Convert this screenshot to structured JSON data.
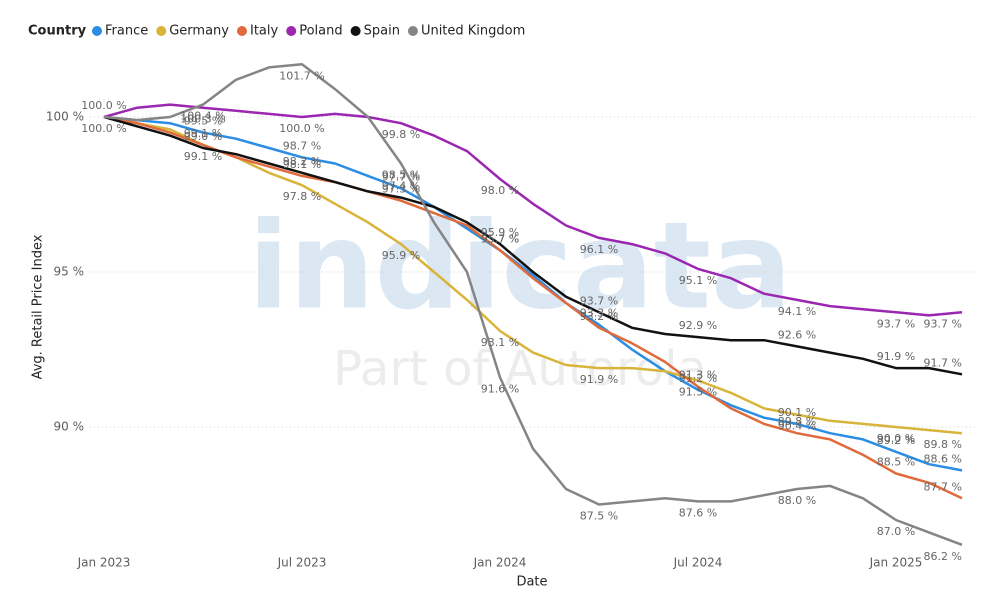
{
  "chart_data": {
    "type": "line",
    "legend_title": "Country",
    "x_label": "Date",
    "y_label": "Avg. Retail Price Index",
    "watermark": [
      "indicata",
      "Part of Autorola"
    ],
    "x": [
      "2023-01",
      "2023-02",
      "2023-03",
      "2023-04",
      "2023-05",
      "2023-06",
      "2023-07",
      "2023-08",
      "2023-09",
      "2023-10",
      "2023-11",
      "2023-12",
      "2024-01",
      "2024-02",
      "2024-03",
      "2024-04",
      "2024-05",
      "2024-06",
      "2024-07",
      "2024-08",
      "2024-09",
      "2024-10",
      "2024-11",
      "2024-12",
      "2025-01",
      "2025-02",
      "2025-03"
    ],
    "xticks": [
      {
        "value": "2023-01",
        "label": "Jan 2023"
      },
      {
        "value": "2023-07",
        "label": "Jul 2023"
      },
      {
        "value": "2024-01",
        "label": "Jan 2024"
      },
      {
        "value": "2024-07",
        "label": "Jul 2024"
      },
      {
        "value": "2025-01",
        "label": "Jan 2025"
      }
    ],
    "ylim": [
      85.2,
      102.5
    ],
    "yticks": [
      {
        "value": 90,
        "label": "90 %"
      },
      {
        "value": 95,
        "label": "95 %"
      },
      {
        "value": 100,
        "label": "100 %"
      }
    ],
    "grid": true,
    "series": [
      {
        "name": "France",
        "color": "#2b8de3",
        "values": [
          100.0,
          99.9,
          99.8,
          99.5,
          99.3,
          99.0,
          98.7,
          98.5,
          98.1,
          97.7,
          97.1,
          96.4,
          95.7,
          94.9,
          94.0,
          93.3,
          92.5,
          91.8,
          91.2,
          90.7,
          90.3,
          90.1,
          89.8,
          89.6,
          89.2,
          88.8,
          88.6
        ],
        "value_labels": [
          "100.0 %",
          null,
          null,
          "99.5 %",
          null,
          null,
          "98.7 %",
          null,
          null,
          "97.7 %",
          null,
          null,
          "95.7 %",
          null,
          null,
          "93.3 %",
          null,
          null,
          "91.2 %",
          null,
          null,
          "90.1 %",
          null,
          null,
          "89.2 %",
          null,
          "88.6 %"
        ]
      },
      {
        "name": "Germany",
        "color": "#d9b43a",
        "values": [
          100.0,
          99.8,
          99.6,
          99.1,
          98.7,
          98.2,
          97.8,
          97.2,
          96.6,
          95.9,
          95.0,
          94.1,
          93.1,
          92.4,
          92.0,
          91.9,
          91.9,
          91.8,
          91.5,
          91.1,
          90.6,
          90.4,
          90.2,
          90.1,
          90.0,
          89.9,
          89.8
        ],
        "value_labels": [
          null,
          null,
          null,
          "99.1 %",
          null,
          null,
          "97.8 %",
          null,
          null,
          "95.9 %",
          null,
          null,
          "93.1 %",
          null,
          null,
          "91.9 %",
          null,
          null,
          "91.5 %",
          null,
          null,
          "90.4 %",
          null,
          null,
          "90.0 %",
          null,
          "89.8 %"
        ]
      },
      {
        "name": "Italy",
        "color": "#e06a3b",
        "values": [
          100.0,
          99.8,
          99.5,
          99.1,
          98.7,
          98.4,
          98.1,
          97.9,
          97.6,
          97.3,
          96.9,
          96.5,
          95.7,
          94.8,
          94.0,
          93.2,
          92.7,
          92.1,
          91.3,
          90.6,
          90.1,
          89.8,
          89.6,
          89.1,
          88.5,
          88.2,
          87.7
        ],
        "value_labels": [
          null,
          null,
          null,
          "99.1 %",
          null,
          null,
          "98.1 %",
          null,
          null,
          "97.3 %",
          null,
          null,
          "95.7 %",
          null,
          null,
          "93.2 %",
          null,
          null,
          "91.3 %",
          null,
          null,
          "89.8 %",
          null,
          null,
          "88.5 %",
          null,
          "87.7 %"
        ]
      },
      {
        "name": "Poland",
        "color": "#9b27b0",
        "values": [
          100.0,
          100.3,
          100.4,
          100.3,
          100.2,
          100.1,
          100.0,
          100.1,
          100.0,
          99.8,
          99.4,
          98.9,
          98.0,
          97.2,
          96.5,
          96.1,
          95.9,
          95.6,
          95.1,
          94.8,
          94.3,
          94.1,
          93.9,
          93.8,
          93.7,
          93.6,
          93.7
        ],
        "value_labels": [
          null,
          null,
          null,
          "100.3 %",
          null,
          null,
          "100.0 %",
          null,
          null,
          "99.8 %",
          null,
          null,
          "98.0 %",
          null,
          null,
          "96.1 %",
          null,
          null,
          "95.1 %",
          null,
          null,
          "94.1 %",
          null,
          null,
          "93.7 %",
          null,
          "93.7 %"
        ]
      },
      {
        "name": "Spain",
        "color": "#111111",
        "values": [
          100.0,
          99.7,
          99.4,
          99.0,
          98.8,
          98.5,
          98.2,
          97.9,
          97.6,
          97.4,
          97.1,
          96.6,
          95.9,
          95.0,
          94.2,
          93.7,
          93.2,
          93.0,
          92.9,
          92.8,
          92.8,
          92.6,
          92.4,
          92.2,
          91.9,
          91.9,
          91.7
        ],
        "value_labels": [
          null,
          null,
          null,
          "99.0 %",
          null,
          null,
          "98.2 %",
          null,
          null,
          "97.4 %",
          null,
          null,
          "95.9 %",
          null,
          null,
          "93.7 %",
          null,
          null,
          "92.9 %",
          null,
          null,
          "92.6 %",
          null,
          null,
          "91.9 %",
          null,
          "91.7 %"
        ]
      },
      {
        "name": "United Kingdom",
        "color": "#858585",
        "values": [
          100.0,
          99.9,
          100.0,
          100.4,
          101.2,
          101.6,
          101.7,
          100.9,
          100.0,
          98.5,
          96.6,
          95.0,
          91.6,
          89.3,
          88.0,
          87.5,
          87.6,
          87.7,
          87.6,
          87.6,
          87.8,
          88.0,
          88.1,
          87.7,
          87.0,
          86.6,
          86.2
        ],
        "value_labels": [
          "100.0 %",
          null,
          null,
          "100.4 %",
          null,
          null,
          "101.7 %",
          null,
          null,
          "98.5 %",
          null,
          null,
          "91.6 %",
          null,
          null,
          "87.5 %",
          null,
          null,
          "87.6 %",
          null,
          null,
          "88.0 %",
          null,
          null,
          "87.0 %",
          null,
          "86.2 %"
        ]
      }
    ]
  }
}
